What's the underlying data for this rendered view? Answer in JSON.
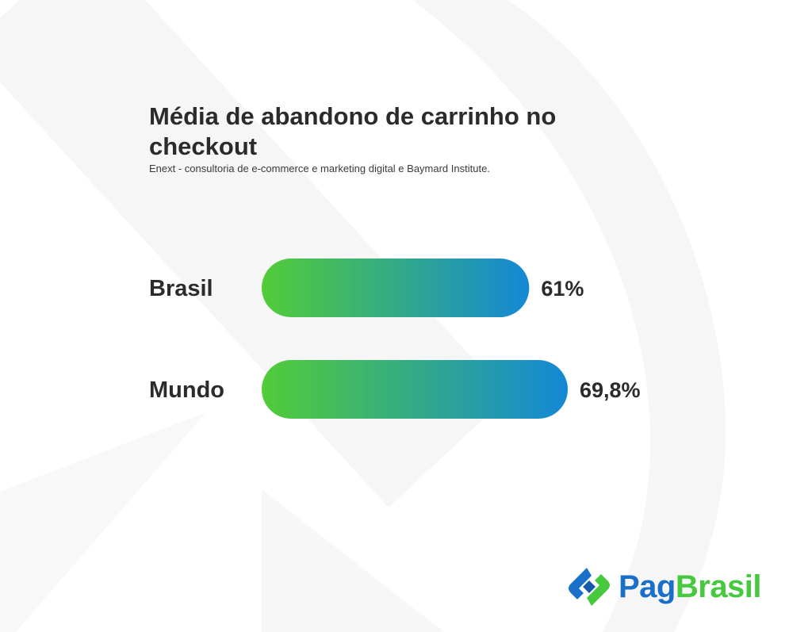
{
  "chart_data": {
    "type": "bar",
    "orientation": "horizontal",
    "title": "Média de abandono de carrinho no checkout",
    "subtitle": "Enext - consultoria de e-commerce e marketing digital e Baymard Institute.",
    "categories": [
      "Brasil",
      "Mundo"
    ],
    "values": [
      61,
      69.8
    ],
    "value_labels": [
      "61%",
      "69,8%"
    ],
    "unit": "%",
    "xlim": [
      0,
      100
    ],
    "grid": false,
    "legend": "none",
    "colors": {
      "gradient_start": "#52cc38",
      "gradient_end": "#1488d6",
      "text": "#2b2b2b"
    }
  },
  "brand": {
    "pag": "Pag",
    "brasil": "Brasil",
    "colors": {
      "blue": "#1a6fc9",
      "green": "#46c83f"
    }
  }
}
